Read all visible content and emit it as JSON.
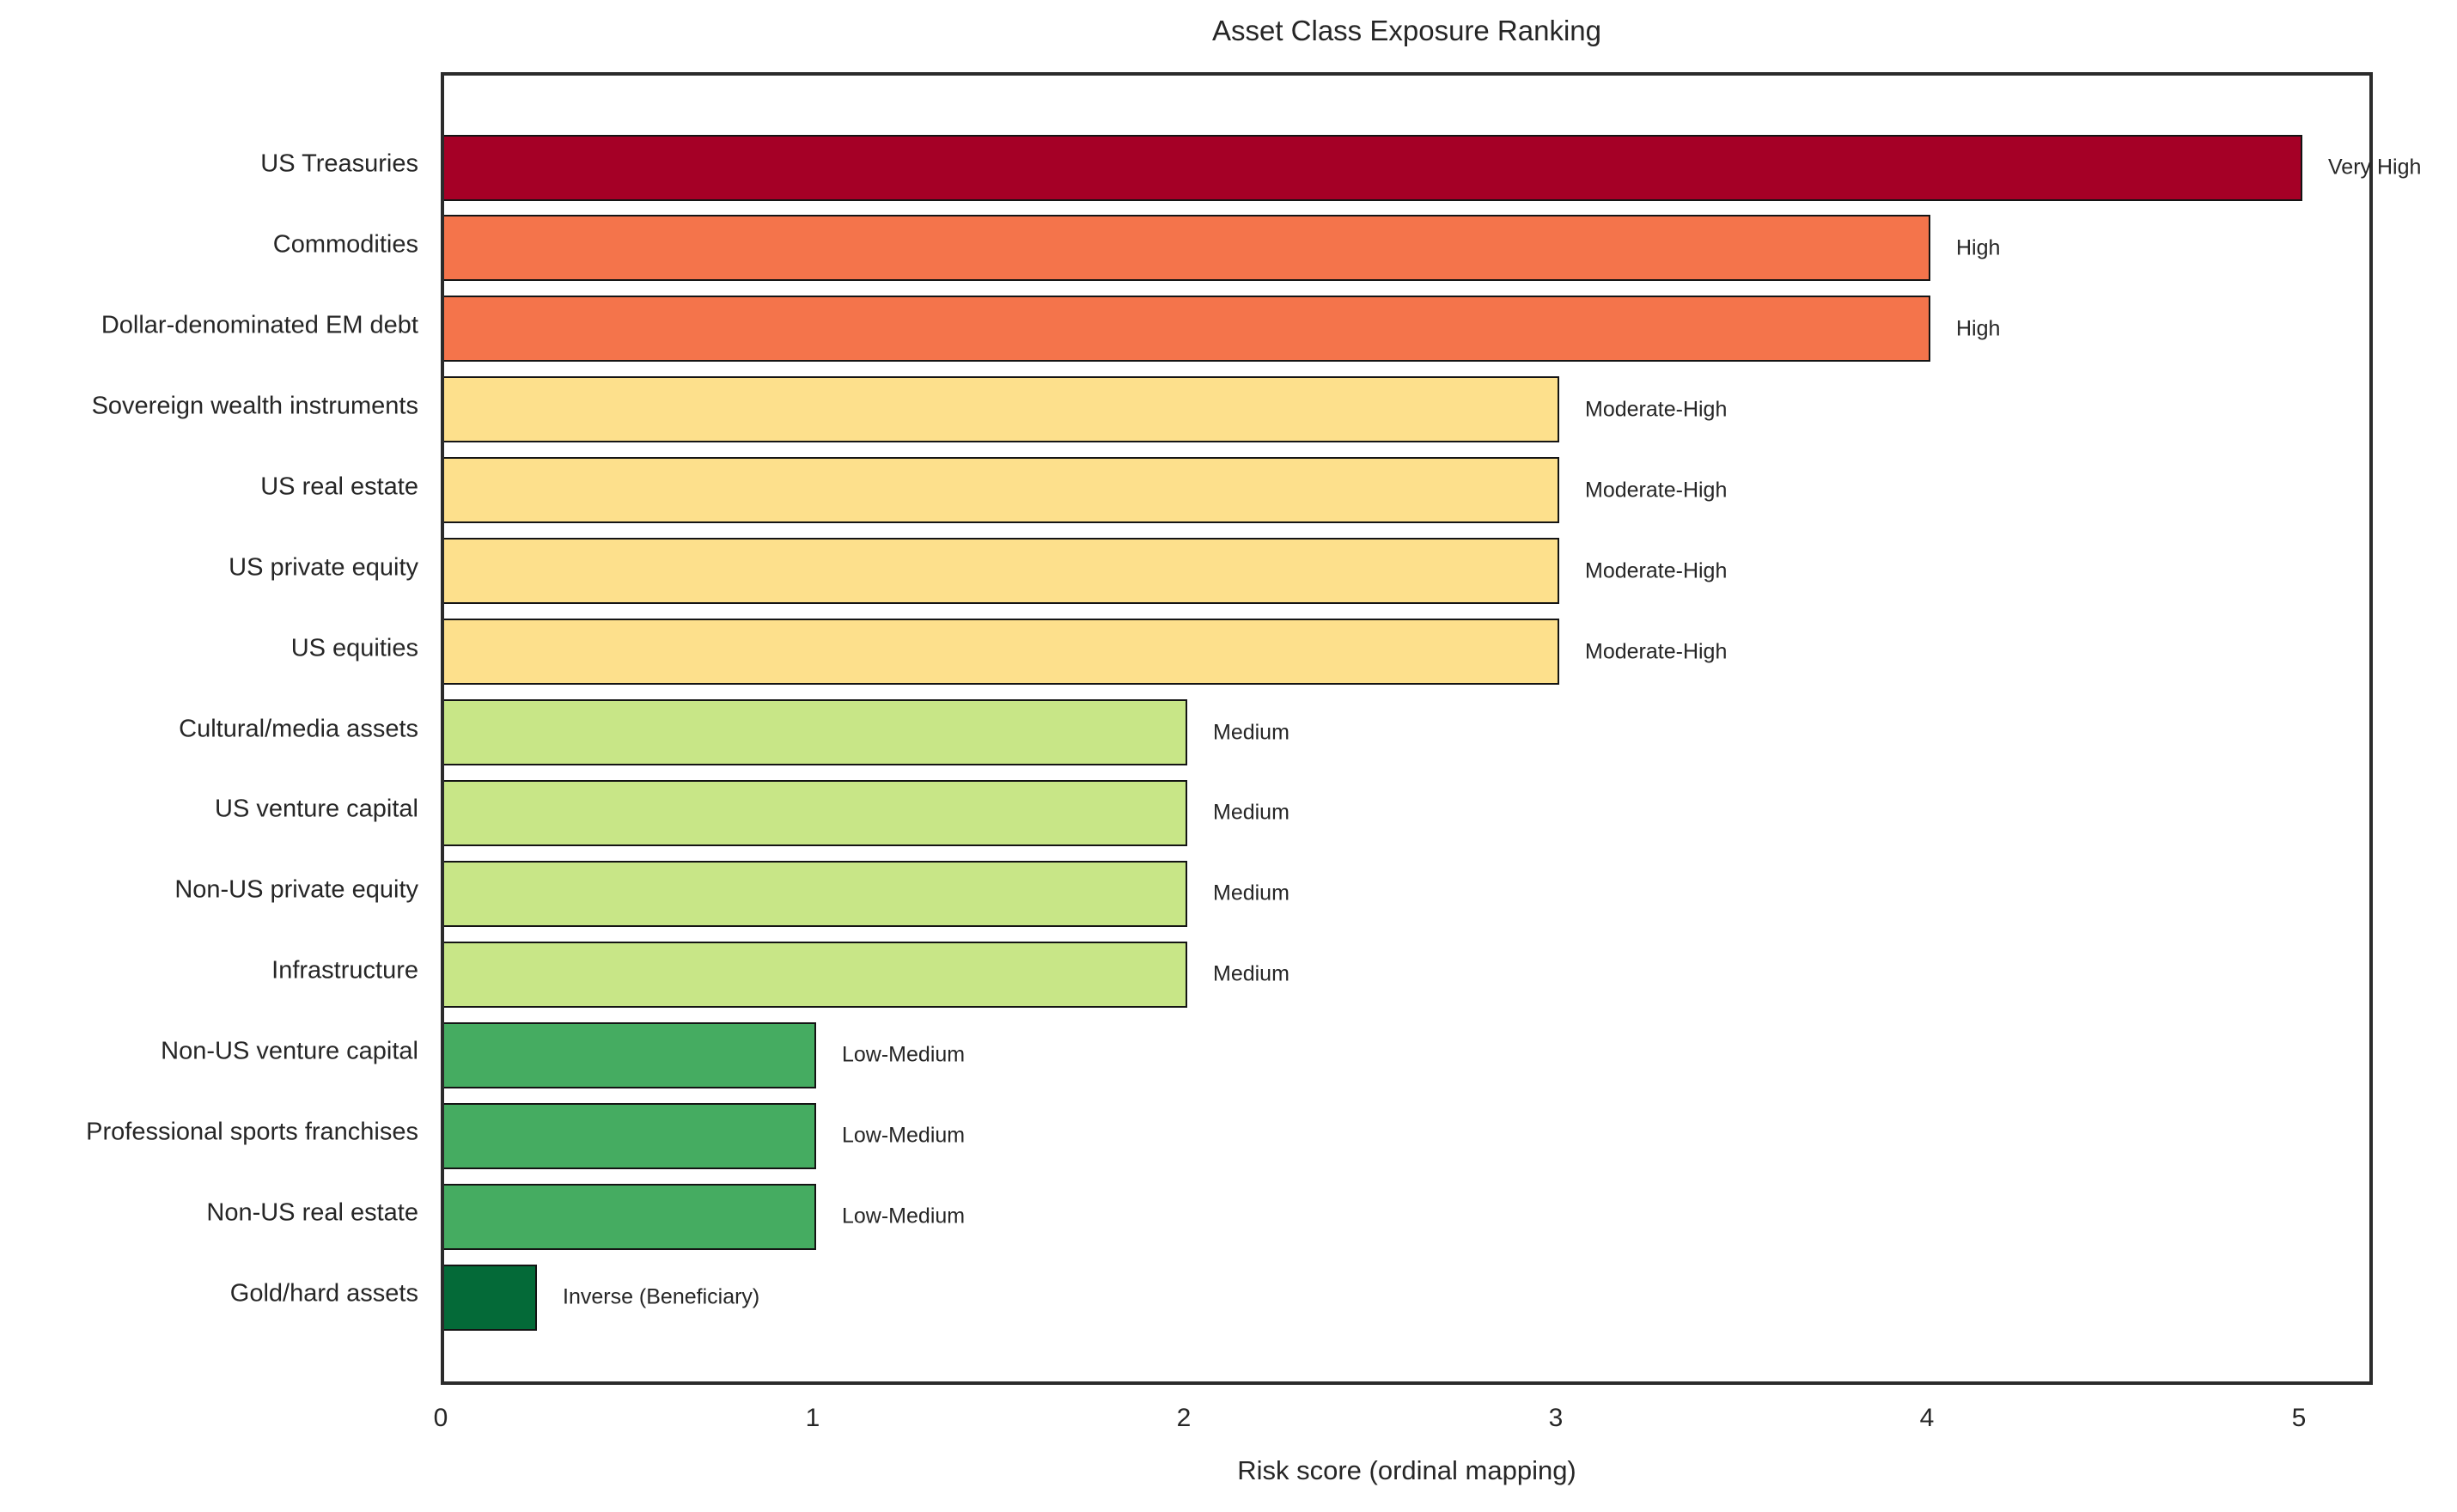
{
  "chart_data": {
    "type": "bar",
    "orientation": "horizontal",
    "title": "Asset Class Exposure Ranking",
    "xlabel": "Risk score (ordinal mapping)",
    "xlim": [
      0,
      5.2
    ],
    "x_ticks": [
      "0",
      "1",
      "2",
      "3",
      "4",
      "5"
    ],
    "grid": false,
    "legend": "none",
    "bars": [
      {
        "label": "US Treasuries",
        "value": 5,
        "annotation": "Very High",
        "color": "#A50026"
      },
      {
        "label": "Commodities",
        "value": 4,
        "annotation": "High",
        "color": "#F4744B"
      },
      {
        "label": "Dollar-denominated EM debt",
        "value": 4,
        "annotation": "High",
        "color": "#F4744B"
      },
      {
        "label": "Sovereign wealth instruments",
        "value": 3,
        "annotation": "Moderate-High",
        "color": "#FDE08C"
      },
      {
        "label": "US real estate",
        "value": 3,
        "annotation": "Moderate-High",
        "color": "#FDE08C"
      },
      {
        "label": "US private equity",
        "value": 3,
        "annotation": "Moderate-High",
        "color": "#FDE08C"
      },
      {
        "label": "US equities",
        "value": 3,
        "annotation": "Moderate-High",
        "color": "#FDE08C"
      },
      {
        "label": "Cultural/media assets",
        "value": 2,
        "annotation": "Medium",
        "color": "#C8E687"
      },
      {
        "label": "US venture capital",
        "value": 2,
        "annotation": "Medium",
        "color": "#C8E687"
      },
      {
        "label": "Non-US private equity",
        "value": 2,
        "annotation": "Medium",
        "color": "#C8E687"
      },
      {
        "label": "Infrastructure",
        "value": 2,
        "annotation": "Medium",
        "color": "#C8E687"
      },
      {
        "label": "Non-US venture capital",
        "value": 1,
        "annotation": "Low-Medium",
        "color": "#45AC61"
      },
      {
        "label": "Professional sports franchises",
        "value": 1,
        "annotation": "Low-Medium",
        "color": "#45AC61"
      },
      {
        "label": "Non-US real estate",
        "value": 1,
        "annotation": "Low-Medium",
        "color": "#45AC61"
      },
      {
        "label": "Gold/hard assets",
        "value": 0.25,
        "annotation": "Inverse (Beneficiary)",
        "color": "#046A38"
      }
    ]
  }
}
